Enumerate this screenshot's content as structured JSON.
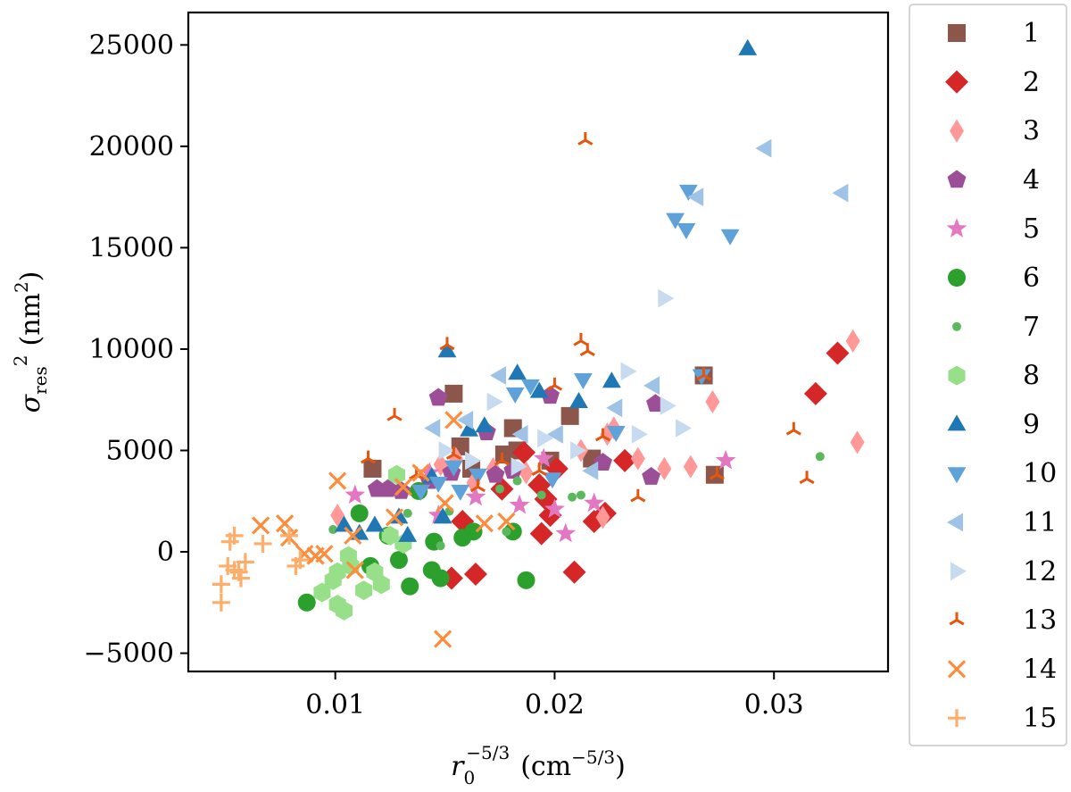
{
  "chart_data": {
    "type": "scatter",
    "title": "",
    "xlabel": "r_0^{-5/3} (cm^{-5/3})",
    "xlabel_parts": {
      "base": "r",
      "sub": "0",
      "sup": "−5/3",
      "unit_open": "(cm",
      "unit_sup": "−5/3",
      "unit_close": ")"
    },
    "ylabel": "σ_res^2 (nm^2)",
    "ylabel_parts": {
      "sigma": "σ",
      "sub": "res",
      "sup": "2",
      "unit_open": "(nm",
      "unit_sup": "2",
      "unit_close": ")"
    },
    "xlim": [
      0.0033,
      0.0352
    ],
    "ylim": [
      -5900,
      26600
    ],
    "xticks": [
      0.01,
      0.02,
      0.03
    ],
    "xtick_labels": [
      "0.01",
      "0.02",
      "0.03"
    ],
    "yticks": [
      -5000,
      0,
      5000,
      10000,
      15000,
      20000,
      25000
    ],
    "ytick_labels": [
      "−5000",
      "0",
      "5000",
      "10000",
      "15000",
      "20000",
      "25000"
    ],
    "legend_position": "outside-right",
    "series": [
      {
        "name": "1",
        "marker": "square",
        "color": "#8c564b",
        "points": [
          [
            0.0117,
            4100
          ],
          [
            0.0154,
            7800
          ],
          [
            0.0157,
            5200
          ],
          [
            0.0162,
            4100
          ],
          [
            0.0177,
            4800
          ],
          [
            0.0181,
            6100
          ],
          [
            0.0183,
            5000
          ],
          [
            0.0198,
            4500
          ],
          [
            0.0207,
            6700
          ],
          [
            0.0217,
            4600
          ],
          [
            0.0268,
            8700
          ],
          [
            0.0273,
            3800
          ]
        ]
      },
      {
        "name": "2",
        "marker": "diamond",
        "color": "#d62728",
        "points": [
          [
            0.0153,
            -1300
          ],
          [
            0.0158,
            1500
          ],
          [
            0.0164,
            -1100
          ],
          [
            0.0176,
            3100
          ],
          [
            0.0186,
            4900
          ],
          [
            0.0193,
            3300
          ],
          [
            0.0194,
            900
          ],
          [
            0.0196,
            2600
          ],
          [
            0.0198,
            1800
          ],
          [
            0.0201,
            4100
          ],
          [
            0.0209,
            -1000
          ],
          [
            0.0218,
            1500
          ],
          [
            0.0223,
            1900
          ],
          [
            0.0232,
            4500
          ],
          [
            0.0319,
            7800
          ],
          [
            0.0329,
            9800
          ]
        ]
      },
      {
        "name": "3",
        "marker": "thin_diamond",
        "color": "#ff9896",
        "points": [
          [
            0.0101,
            1800
          ],
          [
            0.0148,
            4300
          ],
          [
            0.0155,
            4600
          ],
          [
            0.0163,
            3400
          ],
          [
            0.0172,
            4100
          ],
          [
            0.0187,
            3900
          ],
          [
            0.0212,
            5000
          ],
          [
            0.0222,
            1700
          ],
          [
            0.0224,
            5800
          ],
          [
            0.0227,
            6100
          ],
          [
            0.0238,
            4600
          ],
          [
            0.025,
            4100
          ],
          [
            0.0262,
            4200
          ],
          [
            0.0272,
            7400
          ],
          [
            0.0336,
            10400
          ],
          [
            0.0338,
            5400
          ]
        ]
      },
      {
        "name": "4",
        "marker": "pentagon",
        "color": "#9c4f96",
        "points": [
          [
            0.0119,
            3100
          ],
          [
            0.0124,
            3100
          ],
          [
            0.013,
            3000
          ],
          [
            0.0143,
            3500
          ],
          [
            0.0147,
            7600
          ],
          [
            0.0153,
            3900
          ],
          [
            0.0169,
            5900
          ],
          [
            0.0173,
            3800
          ],
          [
            0.0181,
            4000
          ],
          [
            0.0198,
            7700
          ],
          [
            0.0222,
            4400
          ],
          [
            0.0244,
            3700
          ],
          [
            0.0246,
            7300
          ]
        ]
      },
      {
        "name": "5",
        "marker": "star",
        "color": "#e377c2",
        "points": [
          [
            0.0109,
            2800
          ],
          [
            0.0143,
            3900
          ],
          [
            0.0147,
            1800
          ],
          [
            0.0164,
            2700
          ],
          [
            0.0184,
            2300
          ],
          [
            0.0195,
            4600
          ],
          [
            0.02,
            2100
          ],
          [
            0.0205,
            900
          ],
          [
            0.0218,
            2400
          ],
          [
            0.0278,
            4500
          ]
        ]
      },
      {
        "name": "6",
        "marker": "circle",
        "color": "#2ca02c",
        "points": [
          [
            0.0087,
            -2500
          ],
          [
            0.0111,
            1900
          ],
          [
            0.0116,
            -700
          ],
          [
            0.0124,
            800
          ],
          [
            0.0129,
            -400
          ],
          [
            0.0134,
            -1700
          ],
          [
            0.0138,
            3000
          ],
          [
            0.0144,
            -900
          ],
          [
            0.0145,
            500
          ],
          [
            0.0148,
            -1300
          ],
          [
            0.0158,
            700
          ],
          [
            0.0163,
            1000
          ],
          [
            0.0181,
            1000
          ],
          [
            0.0187,
            -1400
          ]
        ]
      },
      {
        "name": "7",
        "marker": "point",
        "color": "#5cb85c",
        "points": [
          [
            0.0099,
            1100
          ],
          [
            0.0133,
            1900
          ],
          [
            0.0148,
            300
          ],
          [
            0.0152,
            2000
          ],
          [
            0.0175,
            3100
          ],
          [
            0.0178,
            1000
          ],
          [
            0.0183,
            3500
          ],
          [
            0.0194,
            2800
          ],
          [
            0.0208,
            2700
          ],
          [
            0.0212,
            2800
          ],
          [
            0.0321,
            4700
          ]
        ]
      },
      {
        "name": "8",
        "marker": "hexagon",
        "color": "#98df8a",
        "points": [
          [
            0.0094,
            -2000
          ],
          [
            0.0099,
            -1400
          ],
          [
            0.0101,
            -2600
          ],
          [
            0.0101,
            -1000
          ],
          [
            0.0104,
            -2900
          ],
          [
            0.0106,
            -200
          ],
          [
            0.0107,
            -700
          ],
          [
            0.0113,
            -1900
          ],
          [
            0.0118,
            -1000
          ],
          [
            0.0121,
            -1600
          ],
          [
            0.0125,
            800
          ],
          [
            0.0128,
            3800
          ],
          [
            0.0131,
            400
          ]
        ]
      },
      {
        "name": "9",
        "marker": "triangle_up",
        "color": "#1f77b4",
        "points": [
          [
            0.0104,
            1300
          ],
          [
            0.0111,
            900
          ],
          [
            0.0118,
            1300
          ],
          [
            0.0129,
            1700
          ],
          [
            0.0133,
            800
          ],
          [
            0.0144,
            3700
          ],
          [
            0.0149,
            1700
          ],
          [
            0.0151,
            9900
          ],
          [
            0.0161,
            6000
          ],
          [
            0.0168,
            6200
          ],
          [
            0.0183,
            8800
          ],
          [
            0.0193,
            7900
          ],
          [
            0.0211,
            7400
          ],
          [
            0.0226,
            8400
          ],
          [
            0.0288,
            24800
          ]
        ]
      },
      {
        "name": "10",
        "marker": "triangle_down",
        "color": "#5fa2d9",
        "points": [
          [
            0.0139,
            3000
          ],
          [
            0.0147,
            3400
          ],
          [
            0.0154,
            4200
          ],
          [
            0.0157,
            3000
          ],
          [
            0.0165,
            3800
          ],
          [
            0.0182,
            7800
          ],
          [
            0.0189,
            8200
          ],
          [
            0.0199,
            3600
          ],
          [
            0.0213,
            8500
          ],
          [
            0.0228,
            5900
          ],
          [
            0.0255,
            16400
          ],
          [
            0.026,
            15900
          ],
          [
            0.0261,
            17800
          ],
          [
            0.0267,
            8700
          ],
          [
            0.028,
            15600
          ]
        ]
      },
      {
        "name": "11",
        "marker": "triangle_left",
        "color": "#9ec3e6",
        "points": [
          [
            0.0145,
            6100
          ],
          [
            0.016,
            6500
          ],
          [
            0.0175,
            8700
          ],
          [
            0.0185,
            5800
          ],
          [
            0.0201,
            5800
          ],
          [
            0.0217,
            4000
          ],
          [
            0.0228,
            7100
          ],
          [
            0.0245,
            8200
          ],
          [
            0.0265,
            17500
          ],
          [
            0.0296,
            19900
          ],
          [
            0.0331,
            17700
          ]
        ]
      },
      {
        "name": "12",
        "marker": "triangle_right",
        "color": "#c6dbef",
        "points": [
          [
            0.015,
            5000
          ],
          [
            0.0162,
            4500
          ],
          [
            0.0172,
            7400
          ],
          [
            0.0183,
            4200
          ],
          [
            0.0195,
            5600
          ],
          [
            0.021,
            5000
          ],
          [
            0.0233,
            8900
          ],
          [
            0.0238,
            5800
          ],
          [
            0.025,
            12500
          ],
          [
            0.0251,
            7200
          ],
          [
            0.0258,
            6100
          ]
        ]
      },
      {
        "name": "13",
        "marker": "tri_down",
        "color": "#e6550d",
        "points": [
          [
            0.0115,
            4600
          ],
          [
            0.0127,
            6700
          ],
          [
            0.0137,
            3800
          ],
          [
            0.0151,
            10200
          ],
          [
            0.0154,
            4800
          ],
          [
            0.0165,
            3200
          ],
          [
            0.0176,
            4500
          ],
          [
            0.0193,
            4000
          ],
          [
            0.02,
            8200
          ],
          [
            0.0212,
            10400
          ],
          [
            0.0214,
            20300
          ],
          [
            0.0215,
            9900
          ],
          [
            0.0222,
            5700
          ],
          [
            0.0238,
            2700
          ],
          [
            0.0268,
            8700
          ],
          [
            0.0274,
            3800
          ],
          [
            0.0309,
            6000
          ],
          [
            0.0315,
            3600
          ]
        ]
      },
      {
        "name": "14",
        "marker": "x",
        "color": "#fd8d3c",
        "points": [
          [
            0.0066,
            1300
          ],
          [
            0.0077,
            1400
          ],
          [
            0.0079,
            700
          ],
          [
            0.0086,
            -100
          ],
          [
            0.0091,
            -200
          ],
          [
            0.0095,
            -100
          ],
          [
            0.0101,
            3500
          ],
          [
            0.0108,
            800
          ],
          [
            0.0109,
            -900
          ],
          [
            0.0127,
            1700
          ],
          [
            0.0131,
            3200
          ],
          [
            0.0139,
            3900
          ],
          [
            0.0149,
            -4300
          ],
          [
            0.015,
            2400
          ],
          [
            0.0154,
            6500
          ],
          [
            0.0168,
            1400
          ],
          [
            0.0178,
            1500
          ]
        ]
      },
      {
        "name": "15",
        "marker": "plus",
        "color": "#fdae6b",
        "points": [
          [
            0.0048,
            -1600
          ],
          [
            0.0048,
            -2500
          ],
          [
            0.0051,
            -700
          ],
          [
            0.0052,
            500
          ],
          [
            0.0054,
            -900
          ],
          [
            0.0054,
            800
          ],
          [
            0.0056,
            -1000
          ],
          [
            0.0057,
            -1300
          ],
          [
            0.0059,
            -500
          ],
          [
            0.0067,
            400
          ],
          [
            0.0079,
            800
          ],
          [
            0.0082,
            -700
          ],
          [
            0.0084,
            -400
          ]
        ]
      }
    ]
  }
}
